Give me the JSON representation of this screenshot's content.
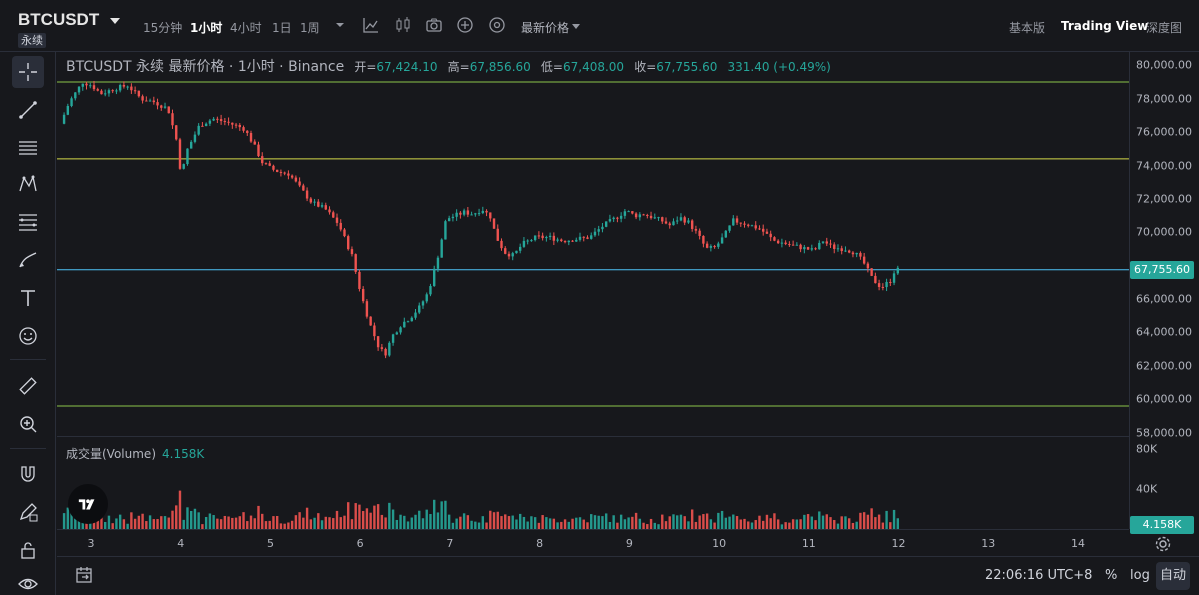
{
  "header": {
    "symbol": "BTCUSDT",
    "perpetual_badge": "永续",
    "timeframes": [
      {
        "label": "15分钟",
        "active": false
      },
      {
        "label": "1小时",
        "active": true
      },
      {
        "label": "4小时",
        "active": false
      },
      {
        "label": "1日",
        "active": false
      },
      {
        "label": "1周",
        "active": false
      }
    ],
    "price_type_label": "最新价格",
    "views": [
      {
        "label": "基本版",
        "active": false
      },
      {
        "label": "Trading View",
        "active": true
      },
      {
        "label": "深度图",
        "active": false
      }
    ],
    "toolbar_icons": [
      "dropdown-icon",
      "indicator-icon",
      "candle-style-icon",
      "camera-icon",
      "plus-circle-icon",
      "settings-circle-icon"
    ]
  },
  "left_toolbar": {
    "tools": [
      "crosshair-icon",
      "trendline-icon",
      "horizontal-lines-icon",
      "pattern-icon",
      "fib-icon",
      "brush-icon",
      "text-icon",
      "emoji-icon",
      "ruler-icon",
      "zoom-in-icon",
      "magnet-icon",
      "lock-pencil-icon",
      "lock-icon",
      "eye-icon"
    ]
  },
  "legend": {
    "title": "BTCUSDT 永续 最新价格 · 1小时 · Binance",
    "open_label": "开=",
    "open_value": "67,424.10",
    "high_label": "高=",
    "high_value": "67,856.60",
    "low_label": "低=",
    "low_value": "67,408.00",
    "close_label": "收=",
    "close_value": "67,755.60",
    "change": "331.40 (+0.49%)"
  },
  "volume_legend": {
    "label": "成交量(Volume)",
    "value": "4.158K"
  },
  "colors": {
    "up": "#26a69a",
    "down": "#ef5350",
    "line_green": "#8bc34a",
    "line_yellow": "#d4d94a",
    "line_cyan": "#4fc3f7",
    "bg": "#17181c"
  },
  "chart_data": {
    "type": "candlestick",
    "price_axis_ticks": [
      "80,000.00",
      "78,000.00",
      "76,000.00",
      "74,000.00",
      "72,000.00",
      "70,000.00",
      "68,000.00",
      "66,000.00",
      "64,000.00",
      "62,000.00",
      "60,000.00",
      "58,000.00"
    ],
    "price_axis_values": [
      80000,
      78000,
      76000,
      74000,
      72000,
      70000,
      68000,
      66000,
      64000,
      62000,
      60000,
      58000
    ],
    "ylim": [
      57800,
      80800
    ],
    "current_price_label": "67,755.60",
    "current_price": 67755.6,
    "horizontal_lines": [
      {
        "price": 79000,
        "color": "#8bc34a"
      },
      {
        "price": 74400,
        "color": "#d4d94a"
      },
      {
        "price": 67755.6,
        "color": "#4fc3f7"
      },
      {
        "price": 59600,
        "color": "#8bc34a"
      }
    ],
    "time_ticks": [
      "3",
      "4",
      "5",
      "6",
      "7",
      "8",
      "9",
      "10",
      "11",
      "12",
      "13",
      "14"
    ],
    "volume_ticks": [
      "80K",
      "40K"
    ],
    "volume_tick_values": [
      80000,
      40000
    ],
    "volume_max": 92000,
    "current_volume_label": "4.158K",
    "price_path": [
      [
        2.7,
        76500
      ],
      [
        2.8,
        77800
      ],
      [
        2.95,
        79000
      ],
      [
        3.05,
        78800
      ],
      [
        3.15,
        78300
      ],
      [
        3.3,
        78600
      ],
      [
        3.45,
        78800
      ],
      [
        3.6,
        78000
      ],
      [
        3.75,
        77800
      ],
      [
        3.9,
        77400
      ],
      [
        4.0,
        75400
      ],
      [
        4.05,
        73200
      ],
      [
        4.1,
        74800
      ],
      [
        4.25,
        76400
      ],
      [
        4.4,
        76800
      ],
      [
        4.55,
        76600
      ],
      [
        4.75,
        76200
      ],
      [
        4.85,
        75300
      ],
      [
        4.95,
        74200
      ],
      [
        5.05,
        73800
      ],
      [
        5.15,
        73600
      ],
      [
        5.25,
        73500
      ],
      [
        5.35,
        72800
      ],
      [
        5.5,
        71800
      ],
      [
        5.65,
        71400
      ],
      [
        5.8,
        70500
      ],
      [
        5.95,
        68600
      ],
      [
        6.05,
        66300
      ],
      [
        6.15,
        64500
      ],
      [
        6.25,
        63100
      ],
      [
        6.32,
        62700
      ],
      [
        6.4,
        63800
      ],
      [
        6.5,
        64500
      ],
      [
        6.6,
        64900
      ],
      [
        6.7,
        65500
      ],
      [
        6.8,
        66400
      ],
      [
        6.9,
        68400
      ],
      [
        7.0,
        70800
      ],
      [
        7.1,
        71000
      ],
      [
        7.2,
        71200
      ],
      [
        7.3,
        71100
      ],
      [
        7.4,
        71400
      ],
      [
        7.5,
        70900
      ],
      [
        7.55,
        69800
      ],
      [
        7.65,
        68800
      ],
      [
        7.75,
        68600
      ],
      [
        7.85,
        69300
      ],
      [
        8.0,
        69700
      ],
      [
        8.15,
        69700
      ],
      [
        8.3,
        69500
      ],
      [
        8.45,
        69600
      ],
      [
        8.6,
        69700
      ],
      [
        8.75,
        70400
      ],
      [
        8.9,
        70900
      ],
      [
        9.0,
        71300
      ],
      [
        9.1,
        71000
      ],
      [
        9.2,
        71100
      ],
      [
        9.3,
        70900
      ],
      [
        9.4,
        70700
      ],
      [
        9.5,
        70400
      ],
      [
        9.6,
        70900
      ],
      [
        9.7,
        70600
      ],
      [
        9.8,
        69900
      ],
      [
        9.9,
        69000
      ],
      [
        10.0,
        69100
      ],
      [
        10.1,
        69800
      ],
      [
        10.2,
        70700
      ],
      [
        10.35,
        70500
      ],
      [
        10.5,
        70200
      ],
      [
        10.65,
        69500
      ],
      [
        10.8,
        69300
      ],
      [
        10.95,
        69100
      ],
      [
        11.1,
        68900
      ],
      [
        11.2,
        69500
      ],
      [
        11.3,
        69100
      ],
      [
        11.45,
        69000
      ],
      [
        11.55,
        68800
      ],
      [
        11.65,
        68200
      ],
      [
        11.75,
        67200
      ],
      [
        11.85,
        66700
      ],
      [
        11.95,
        67100
      ],
      [
        12.0,
        67755.6
      ]
    ]
  },
  "bottom_bar": {
    "clock": "22:06:16 UTC+8",
    "percent_label": "%",
    "log_label": "log",
    "auto_label": "自动"
  }
}
